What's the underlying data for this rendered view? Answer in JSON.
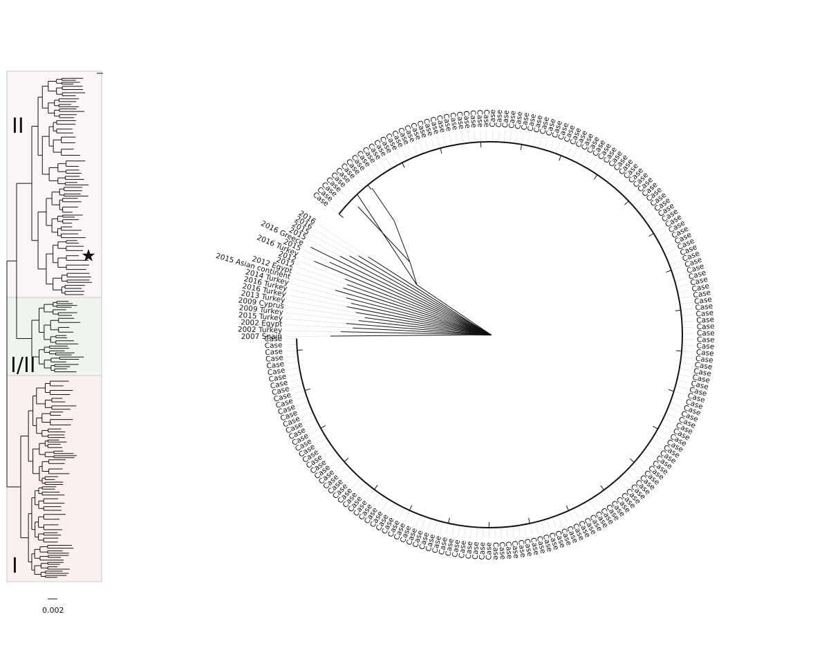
{
  "inset_tree": {
    "clades": [
      {
        "label": "II",
        "fill": "#fbf5f6",
        "border": "#c9c9c9"
      },
      {
        "label": "I/II",
        "fill": "#eef5ee",
        "border": "#c9c9c9"
      },
      {
        "label": "I",
        "fill": "#fbf0ee",
        "border": "#c9c9c9"
      }
    ],
    "marker_icon": "star-icon",
    "scale_bar_label": "0.002"
  },
  "circular_tree": {
    "reference_labels": [
      "2007 Spain",
      "2002 Turkey",
      "2002 Egypt",
      "2015 Turkey",
      "2009 Turkey",
      "2009 Cyprus",
      "2013 Turkey",
      "2016 Turkey",
      "2016 Turkey",
      "2014 Turkey",
      "2015 Asian continent",
      "2012 Egypt",
      "2012",
      "2012",
      "2016 Turkey",
      "2015",
      "2016 Greece",
      "2015",
      "2015",
      "2016",
      "2016"
    ],
    "case_label": "Case",
    "case_count": 185
  }
}
